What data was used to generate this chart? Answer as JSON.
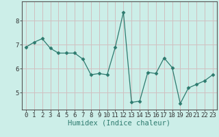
{
  "x": [
    0,
    1,
    2,
    3,
    4,
    5,
    6,
    7,
    8,
    9,
    10,
    11,
    12,
    13,
    14,
    15,
    16,
    17,
    18,
    19,
    20,
    21,
    22,
    23
  ],
  "y": [
    6.9,
    7.1,
    7.25,
    6.85,
    6.65,
    6.65,
    6.65,
    6.4,
    5.75,
    5.8,
    5.75,
    6.9,
    8.35,
    4.6,
    4.65,
    5.85,
    5.8,
    6.45,
    6.05,
    4.55,
    5.2,
    5.35,
    5.5,
    5.75
  ],
  "line_color": "#2d7a6e",
  "marker": "D",
  "marker_size": 2.5,
  "bg_color": "#cceee8",
  "grid_color_major": "#b0b0b0",
  "grid_color_minor": "#d0c0c0",
  "xlabel": "Humidex (Indice chaleur)",
  "xlabel_fontsize": 7.5,
  "tick_fontsize": 6.5,
  "ylim": [
    4.3,
    8.8
  ],
  "xlim": [
    -0.5,
    23.5
  ],
  "yticks": [
    5,
    6,
    7,
    8
  ],
  "xticks": [
    0,
    1,
    2,
    3,
    4,
    5,
    6,
    7,
    8,
    9,
    10,
    11,
    12,
    13,
    14,
    15,
    16,
    17,
    18,
    19,
    20,
    21,
    22,
    23
  ]
}
